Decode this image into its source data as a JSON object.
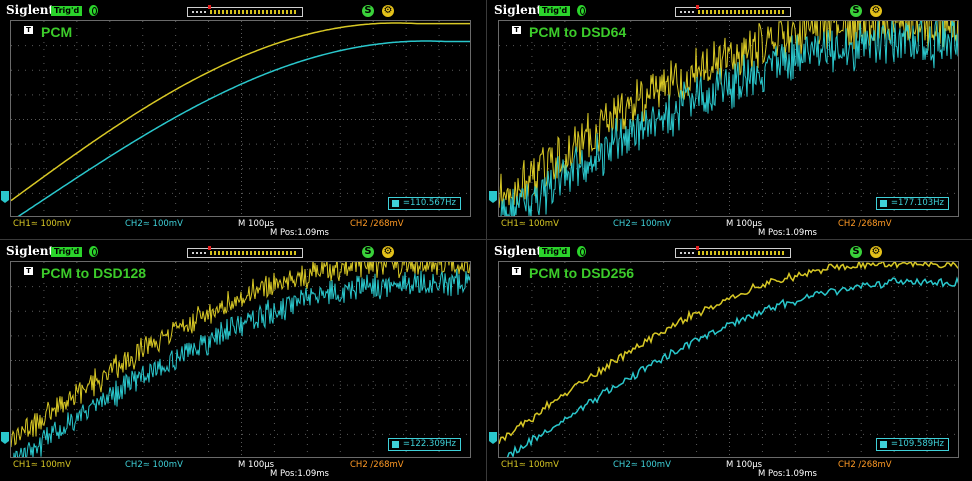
{
  "panels": [
    {
      "brand": "Siglent",
      "trig_status": "Trig'd",
      "title": "PCM",
      "ch1": "CH1≃ 100mV",
      "ch2": "CH2≃ 100mV",
      "timebase": "M 100μs",
      "mpos": "M Pos:1.09ms",
      "trigger": "CH2 ∕268mV",
      "freq": "=110.567Hz",
      "noise": 0.0
    },
    {
      "brand": "Siglent",
      "trig_status": "Trig'd",
      "title": "PCM to DSD64",
      "ch1": "CH1≃ 100mV",
      "ch2": "CH2≃ 100mV",
      "timebase": "M 100μs",
      "mpos": "M Pos:1.09ms",
      "trigger": "CH2 ∕268mV",
      "freq": "=177.103Hz",
      "noise": 1.0
    },
    {
      "brand": "Siglent",
      "trig_status": "Trig'd",
      "title": "PCM to DSD128",
      "ch1": "CH1≃ 100mV",
      "ch2": "CH2≃ 100mV",
      "timebase": "M 100μs",
      "mpos": "M Pos:1.09ms",
      "trigger": "CH2 ∕268mV",
      "freq": "=122.309Hz",
      "noise": 0.55
    },
    {
      "brand": "Siglent",
      "trig_status": "Trig'd",
      "title": "PCM to DSD256",
      "ch1": "CH1≃ 100mV",
      "ch2": "CH2≃ 100mV",
      "timebase": "M 100μs",
      "mpos": "M Pos:1.09ms",
      "trigger": "CH2 ∕268mV",
      "freq": "=109.589Hz",
      "noise": 0.18
    }
  ],
  "colors": {
    "ch1": "#d8c825",
    "ch2": "#2ac7cc",
    "title": "#3ccb2a",
    "grid": "#6a6a6a",
    "trigger": "#ff9a25"
  },
  "icons": [
    "trigger-status-icon",
    "run-stop-icon",
    "settings-gear-icon",
    "trigger-marker-icon"
  ]
}
